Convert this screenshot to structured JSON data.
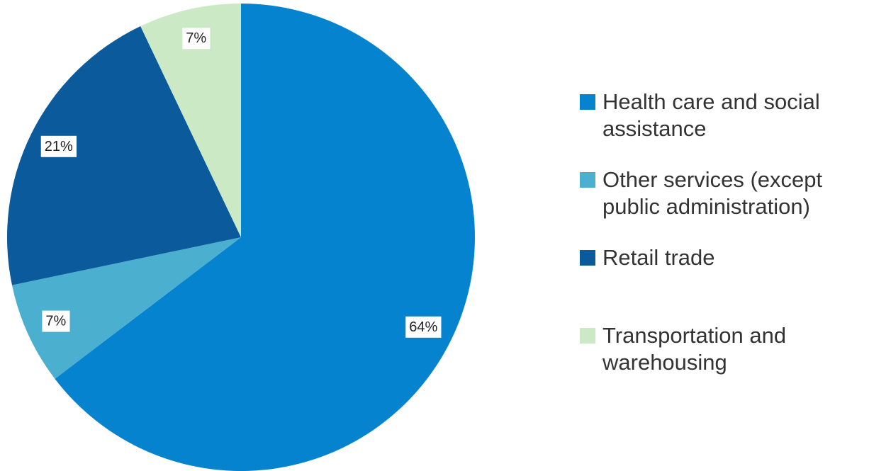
{
  "chart_data": {
    "type": "pie",
    "categories": [
      "Health care and social assistance",
      "Other services (except public administration)",
      "Retail trade",
      "Transportation and warehousing"
    ],
    "values": [
      64,
      7,
      21,
      7
    ],
    "value_labels": [
      "64%",
      "7%",
      "21%",
      "7%"
    ],
    "colors": [
      "#0683cf",
      "#4bafd0",
      "#0a5a9c",
      "#cbe9c5"
    ],
    "legend": "right"
  }
}
